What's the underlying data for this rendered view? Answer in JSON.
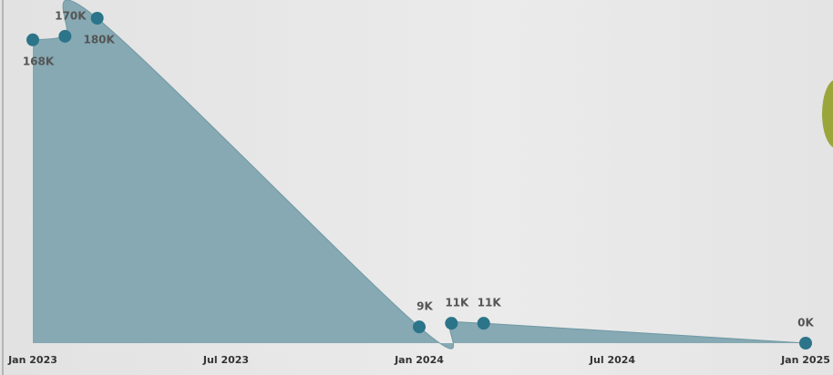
{
  "chart_data": {
    "type": "area",
    "x": [
      "2023-01",
      "2023-02",
      "2023-03",
      "2024-01",
      "2024-02",
      "2024-03",
      "2025-01"
    ],
    "series": [
      {
        "color": "#2c7489",
        "fill_color": "#86a9b3",
        "values": [
          168,
          170,
          180,
          9,
          11,
          11,
          0
        ],
        "value_labels": [
          "168K",
          "170K",
          "180K",
          "9K",
          "11K",
          "11K",
          "0K"
        ]
      }
    ],
    "xlim": [
      "2023-01",
      "2025-01"
    ],
    "xticks": [
      {
        "value": "2023-01",
        "label": "Jan 2023"
      },
      {
        "value": "2023-07",
        "label": "Jul 2023"
      },
      {
        "value": "2024-01",
        "label": "Jan 2024"
      },
      {
        "value": "2024-07",
        "label": "Jul 2024"
      },
      {
        "value": "2025-01",
        "label": "Jan 2025"
      }
    ]
  }
}
